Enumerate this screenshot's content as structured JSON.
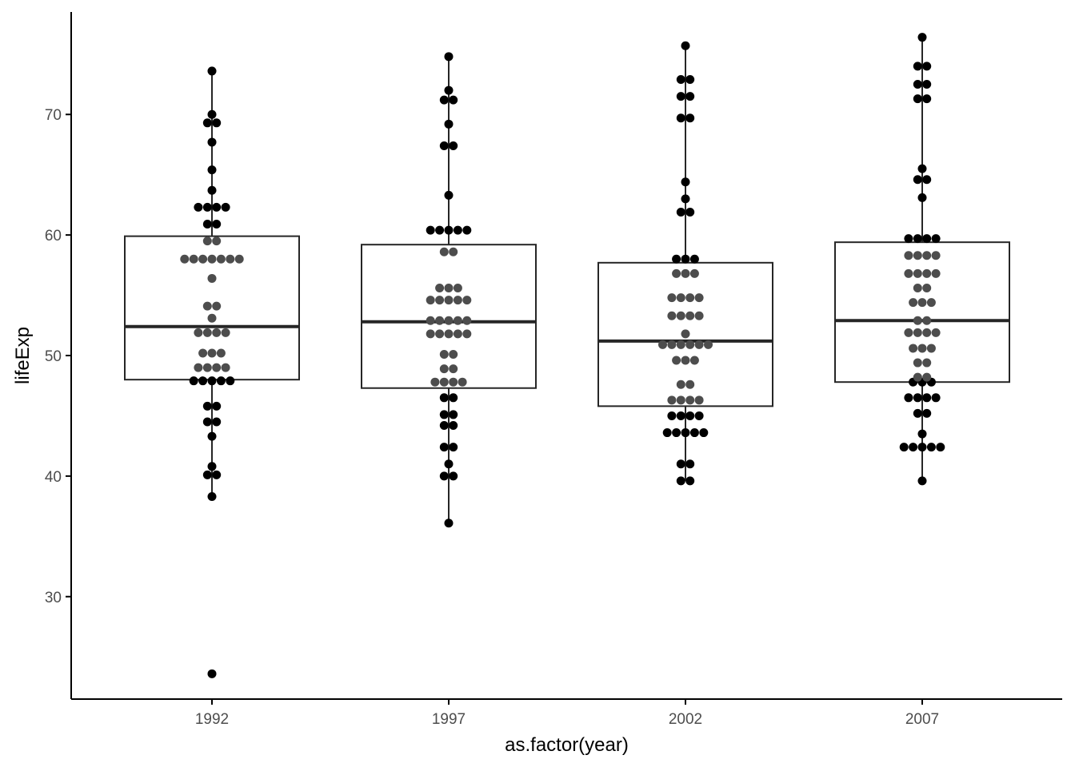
{
  "chart_data": {
    "type": "boxplot",
    "xlabel": "as.factor(year)",
    "ylabel": "lifeExp",
    "categories": [
      "1992",
      "1997",
      "2002",
      "2007"
    ],
    "ylim": [
      21.5,
      78.5
    ],
    "yticks": [
      30,
      40,
      50,
      60,
      70
    ],
    "grid": false,
    "boxes": [
      {
        "category": "1992",
        "whisker_low": 38.3,
        "q1": 48.0,
        "median": 52.4,
        "q3": 59.9,
        "whisker_high": 73.6
      },
      {
        "category": "1997",
        "whisker_low": 36.1,
        "q1": 47.3,
        "median": 52.8,
        "q3": 59.2,
        "whisker_high": 74.8
      },
      {
        "category": "2002",
        "whisker_low": 39.6,
        "q1": 45.8,
        "median": 51.2,
        "q3": 57.7,
        "whisker_high": 75.7
      },
      {
        "category": "2007",
        "whisker_low": 39.6,
        "q1": 47.8,
        "median": 52.9,
        "q3": 59.4,
        "whisker_high": 76.4
      }
    ],
    "points": [
      {
        "category": "1992",
        "values": [
          23.6,
          38.3,
          40.1,
          40.1,
          40.8,
          43.3,
          44.5,
          44.5,
          45.8,
          45.8,
          47.9,
          47.9,
          47.9,
          47.9,
          47.9,
          49.0,
          49.0,
          49.0,
          49.0,
          50.2,
          50.2,
          50.2,
          51.9,
          51.9,
          51.9,
          51.9,
          53.1,
          54.1,
          54.1,
          56.4,
          58.0,
          58.0,
          58.0,
          58.0,
          58.0,
          58.0,
          58.0,
          59.5,
          59.5,
          60.9,
          60.9,
          62.3,
          62.3,
          62.3,
          62.3,
          63.7,
          65.4,
          67.7,
          69.3,
          69.3,
          70.0,
          73.6
        ]
      },
      {
        "category": "1997",
        "values": [
          36.1,
          40.0,
          40.0,
          41.0,
          42.4,
          42.4,
          44.2,
          44.2,
          45.1,
          45.1,
          46.5,
          46.5,
          47.8,
          47.8,
          47.8,
          47.8,
          48.9,
          48.9,
          50.1,
          50.1,
          51.8,
          51.8,
          51.8,
          51.8,
          51.8,
          52.9,
          52.9,
          52.9,
          52.9,
          52.9,
          54.6,
          54.6,
          54.6,
          54.6,
          54.6,
          55.6,
          55.6,
          55.6,
          58.6,
          58.6,
          60.4,
          60.4,
          60.4,
          60.4,
          60.4,
          63.3,
          67.4,
          67.4,
          69.2,
          71.2,
          71.2,
          72.0,
          74.8
        ]
      },
      {
        "category": "2002",
        "values": [
          39.6,
          39.6,
          41.0,
          41.0,
          43.6,
          43.6,
          43.6,
          43.6,
          43.6,
          45.0,
          45.0,
          45.0,
          45.0,
          46.3,
          46.3,
          46.3,
          46.3,
          47.6,
          47.6,
          49.6,
          49.6,
          49.6,
          50.9,
          50.9,
          50.9,
          50.9,
          50.9,
          50.9,
          51.8,
          53.3,
          53.3,
          53.3,
          53.3,
          54.8,
          54.8,
          54.8,
          54.8,
          56.8,
          56.8,
          56.8,
          58.0,
          58.0,
          58.0,
          61.9,
          61.9,
          63.0,
          64.4,
          69.7,
          69.7,
          71.5,
          71.5,
          72.9,
          72.9,
          75.7
        ]
      },
      {
        "category": "2007",
        "values": [
          39.6,
          42.4,
          42.4,
          42.4,
          42.4,
          42.4,
          43.5,
          45.2,
          45.2,
          46.5,
          46.5,
          46.5,
          46.5,
          47.8,
          47.8,
          47.8,
          48.2,
          48.2,
          49.4,
          49.4,
          50.6,
          50.6,
          50.6,
          51.9,
          51.9,
          51.9,
          51.9,
          52.9,
          52.9,
          54.4,
          54.4,
          54.4,
          55.6,
          55.6,
          56.8,
          56.8,
          56.8,
          56.8,
          58.3,
          58.3,
          58.3,
          58.3,
          59.7,
          59.7,
          59.7,
          59.7,
          63.1,
          64.6,
          64.6,
          65.5,
          71.3,
          71.3,
          72.5,
          72.5,
          74.0,
          74.0,
          76.4
        ]
      }
    ],
    "colors": {
      "box_outline": "#262626",
      "median": "#262626",
      "point_outside_box": "#000000",
      "point_inside_box": "#4d4d4d",
      "axis": "#000000",
      "tick_label": "#4d4d4d"
    }
  }
}
